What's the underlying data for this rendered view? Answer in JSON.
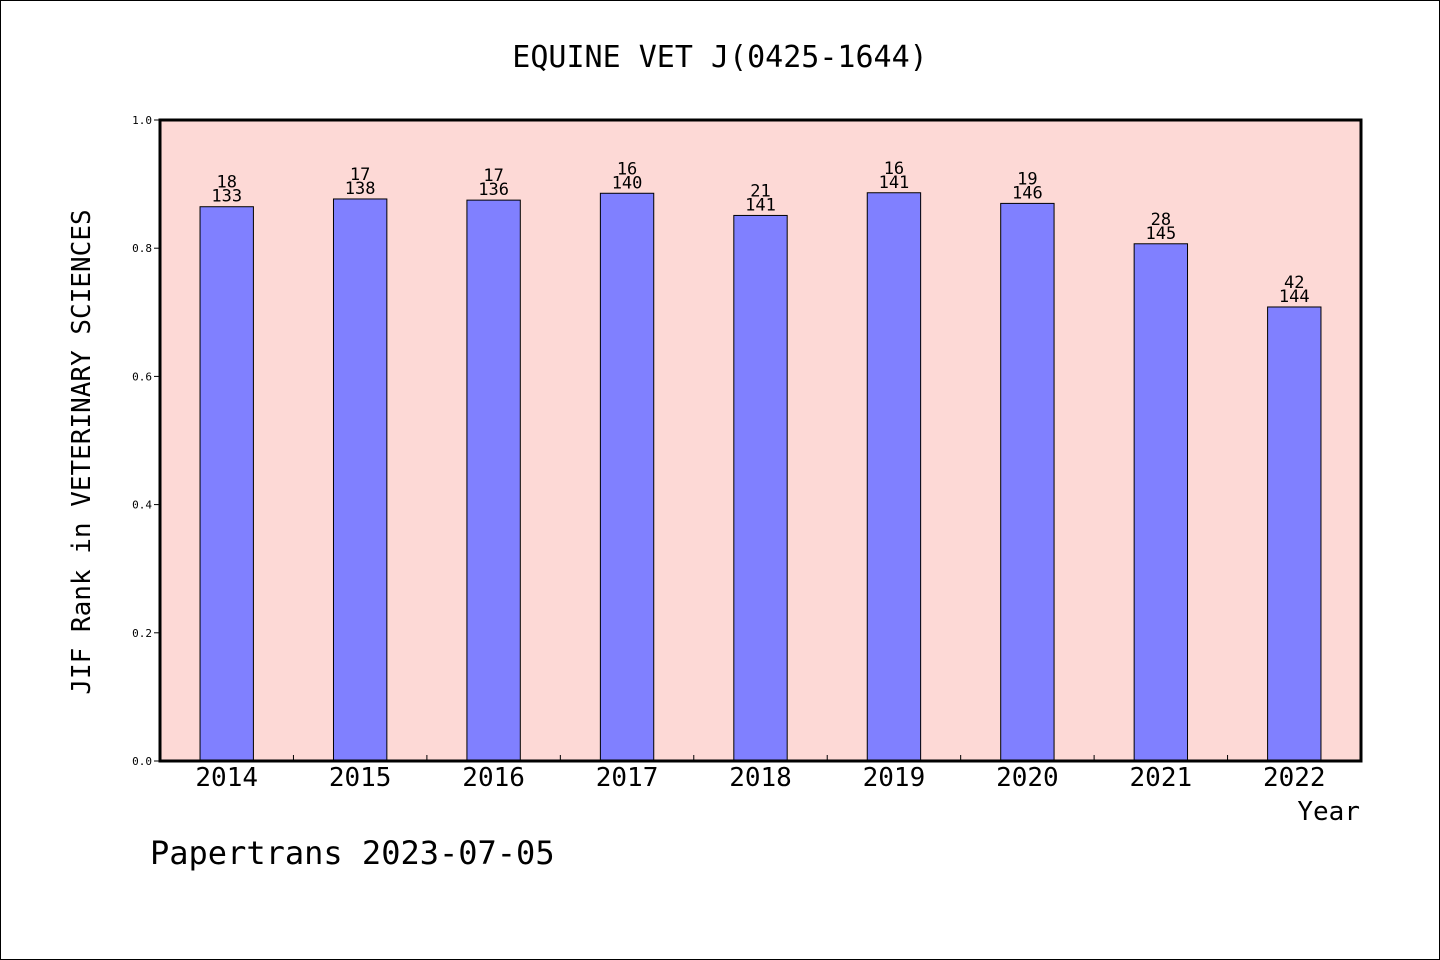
{
  "chart_data": {
    "type": "bar",
    "title": "EQUINE VET J(0425-1644)",
    "xlabel": "Year",
    "ylabel": "JIF Rank in VETERINARY SCIENCES",
    "ylim": [
      0,
      1.0
    ],
    "yticks": [
      "0.0",
      "0.2",
      "0.4",
      "0.6",
      "0.8",
      "1.0"
    ],
    "grid": false,
    "categories": [
      "2014",
      "2015",
      "2016",
      "2017",
      "2018",
      "2019",
      "2020",
      "2021",
      "2022"
    ],
    "values": [
      0.8647,
      0.8768,
      0.875,
      0.8857,
      0.8511,
      0.8865,
      0.8699,
      0.8069,
      0.7083
    ],
    "ranks": [
      "18",
      "17",
      "17",
      "16",
      "21",
      "16",
      "19",
      "28",
      "42"
    ],
    "totals": [
      "133",
      "138",
      "136",
      "140",
      "141",
      "141",
      "146",
      "145",
      "144"
    ],
    "colors": {
      "plot_background": "#fdd9d6",
      "bar": "#8080ff",
      "border": "#000000"
    }
  },
  "footer": {
    "text": "Papertrans 2023-07-05"
  }
}
